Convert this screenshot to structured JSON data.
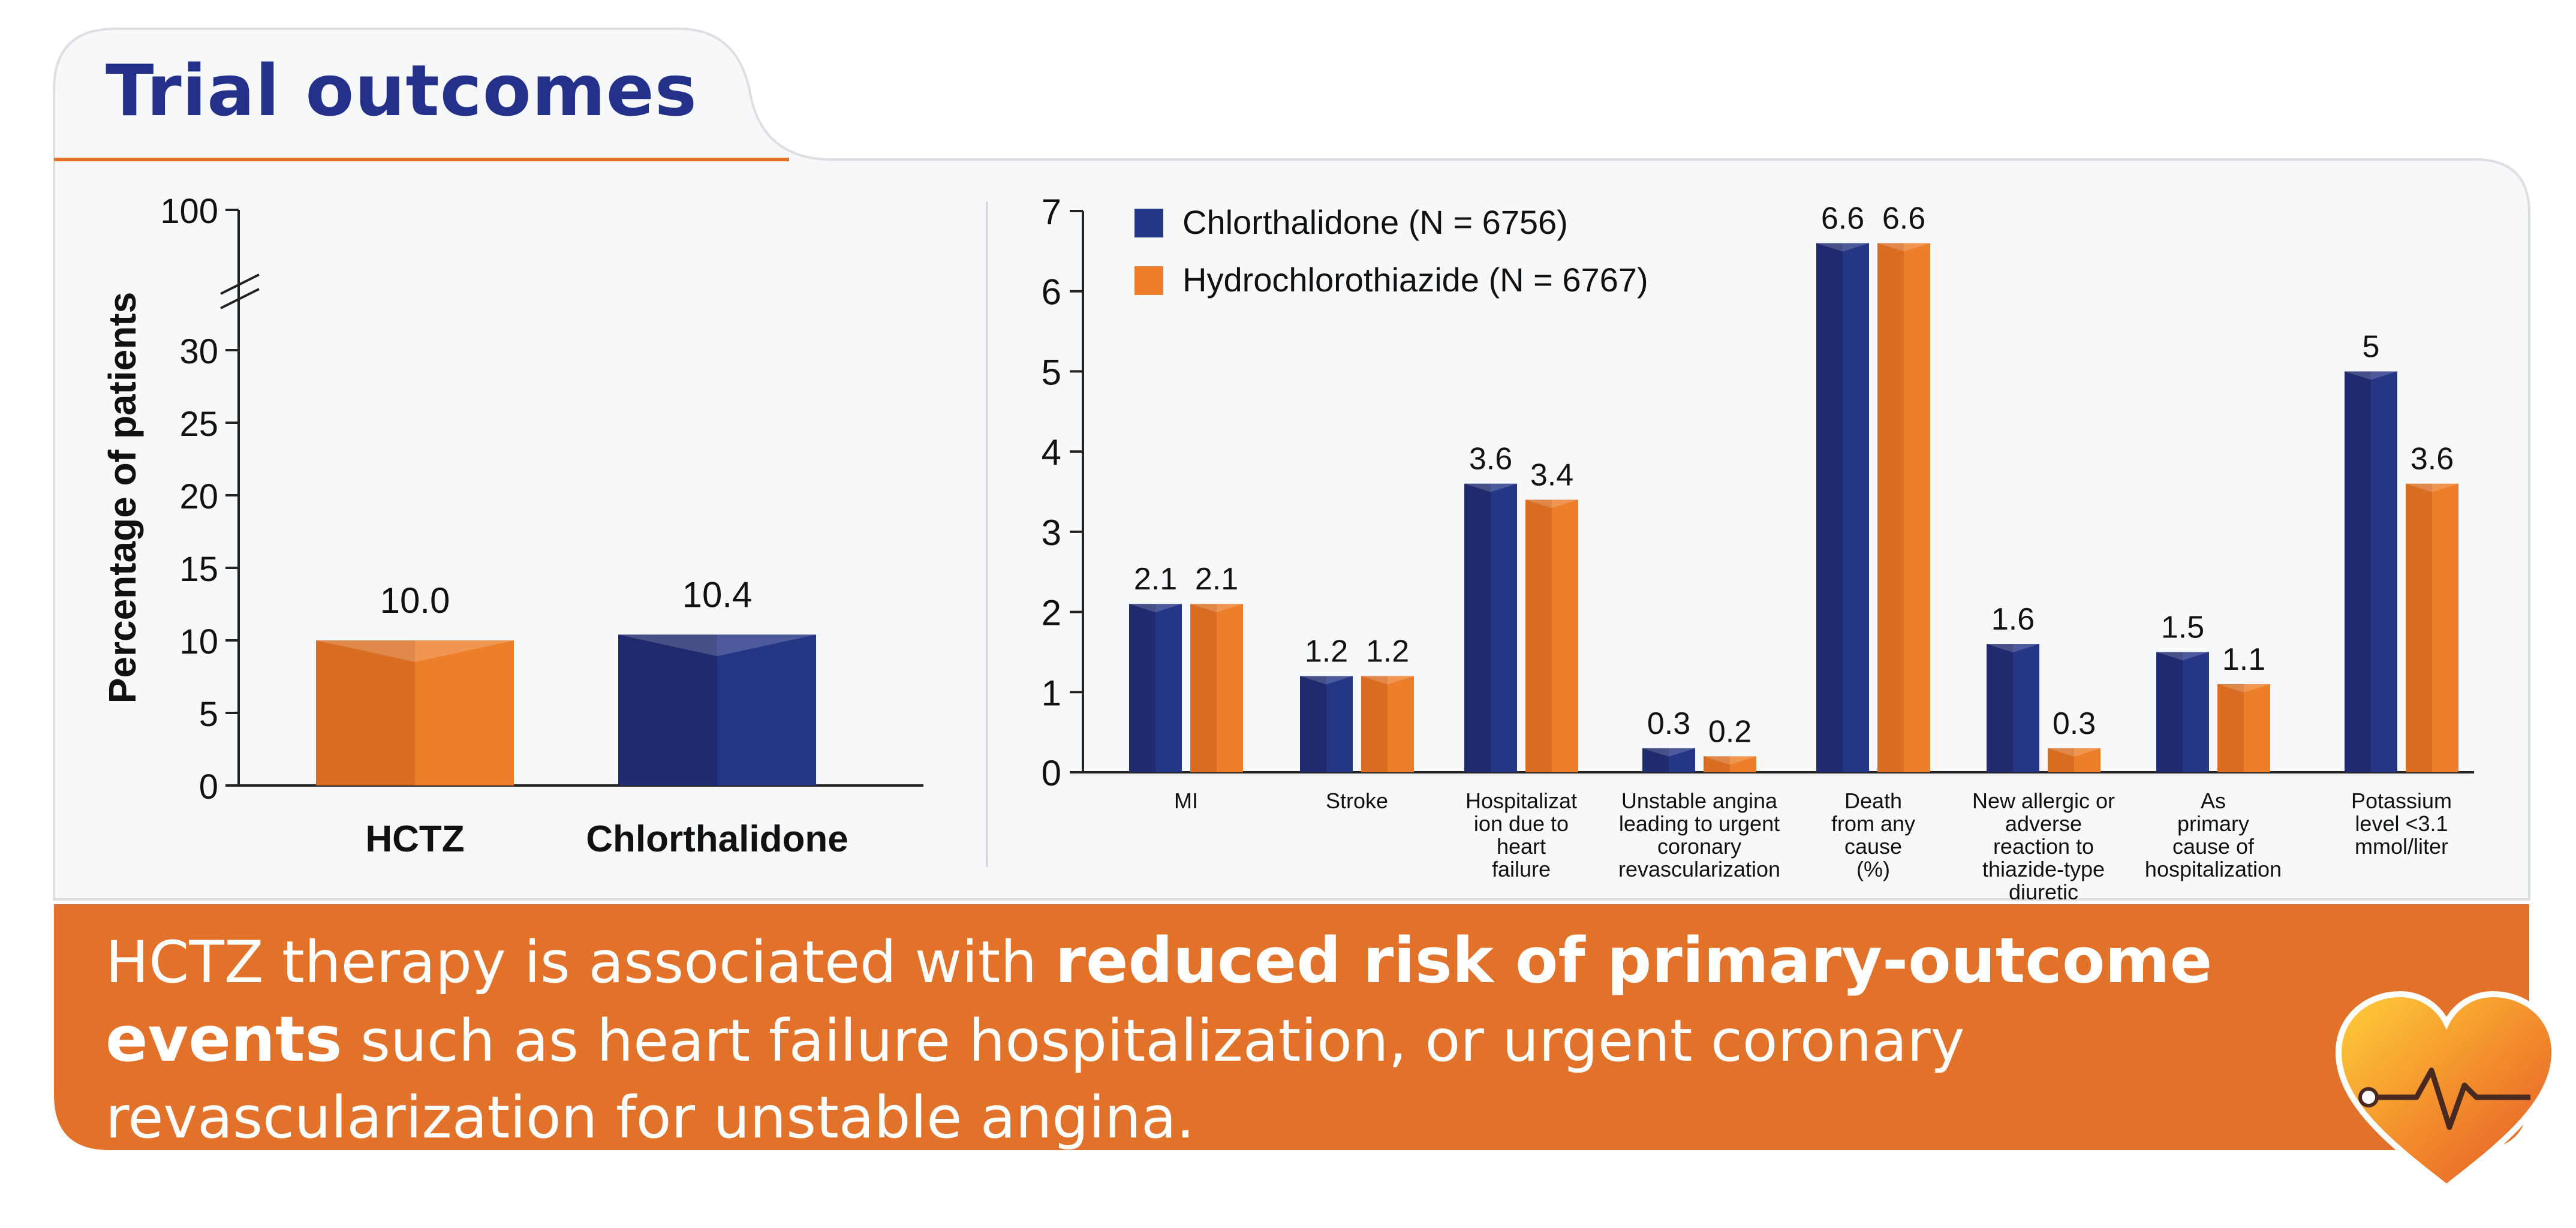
{
  "title": "Trial outcomes",
  "colors": {
    "navy": "#263687",
    "navy_dark": "#1f2b6e",
    "orange": "#ed7f2a",
    "orange_dark": "#d96e22",
    "banner": "#e2712a",
    "panel_bg": "#f7f8fa",
    "title_color": "#23318a"
  },
  "chart_data": [
    {
      "type": "bar",
      "ylabel": "Percentage of patients",
      "yticks": [
        0,
        5,
        10,
        15,
        20,
        25,
        30,
        100
      ],
      "axis_break": "between 30 and 100",
      "categories": [
        "HCTZ",
        "Chlorthalidone"
      ],
      "values": [
        10.0,
        10.4
      ],
      "value_labels": [
        "10.0",
        "10.4"
      ],
      "bar_colors": [
        "orange",
        "navy"
      ]
    },
    {
      "type": "bar",
      "ylim": [
        0,
        7
      ],
      "yticks": [
        0,
        1,
        2,
        3,
        4,
        5,
        6,
        7
      ],
      "legend_position": "top-left",
      "categories": [
        "MI",
        "Stroke",
        "Hospitalization due to heart failure",
        "Unstable angina leading to urgent coronary revascularization",
        "Death from any cause (%)",
        "New allergic or adverse reaction to thiazide-type diuretic",
        "As primary cause of hospitalization",
        "Potassium level <3.1 mmol/liter"
      ],
      "category_label_lines": [
        [
          "MI"
        ],
        [
          "Stroke"
        ],
        [
          "Hospitalizat",
          "ion due to",
          "heart",
          "failure"
        ],
        [
          "Unstable angina",
          "leading to urgent",
          "coronary",
          "revascularization"
        ],
        [
          "Death",
          "from any",
          "cause",
          "(%)"
        ],
        [
          "New allergic or",
          "adverse",
          "reaction to",
          "thiazide-type",
          "diuretic"
        ],
        [
          "As",
          "primary",
          "cause of",
          "hospitalization"
        ],
        [
          "Potassium",
          "level <3.1",
          "mmol/liter"
        ]
      ],
      "series": [
        {
          "name": "Chlorthalidone (N = 6756)",
          "color": "navy",
          "values": [
            2.1,
            1.2,
            3.6,
            0.3,
            6.6,
            1.6,
            1.5,
            5
          ],
          "value_labels": [
            "2.1",
            "1.2",
            "3.6",
            "0.3",
            "6.6",
            "1.6",
            "1.5",
            "5"
          ]
        },
        {
          "name": "Hydrochlorothiazide (N = 6767)",
          "color": "orange",
          "values": [
            2.1,
            1.2,
            3.4,
            0.2,
            6.6,
            0.3,
            1.1,
            3.6
          ],
          "value_labels": [
            "2.1",
            "1.2",
            "3.4",
            "0.2",
            "6.6",
            "0.3",
            "1.1",
            "3.6"
          ]
        }
      ]
    }
  ],
  "banner": {
    "part1": "HCTZ therapy is associated with ",
    "part2_bold": "reduced risk of  primary-outcome events",
    "part3": " such as heart failure hospitalization, or urgent coronary revascularization for unstable angina."
  },
  "logo_icon": "heart-pulse-icon"
}
